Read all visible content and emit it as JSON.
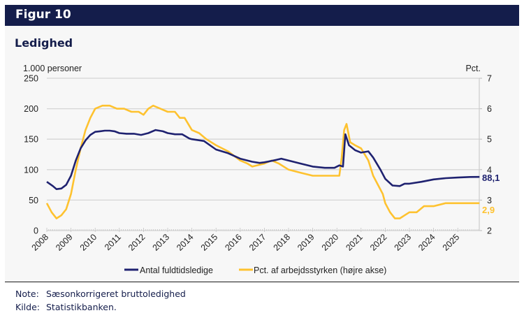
{
  "header": {
    "figure_label": "Figur 10"
  },
  "chart_data": {
    "type": "line",
    "title": "Ledighed",
    "ylabel_left": "1.000 personer",
    "ylabel_right": "Pct.",
    "ylim_left": [
      0,
      250
    ],
    "ylim_right": [
      2,
      7
    ],
    "yticks_left": [
      "0",
      "50",
      "100",
      "150",
      "200",
      "250"
    ],
    "yticks_right": [
      "2",
      "3",
      "4",
      "5",
      "6",
      "7"
    ],
    "grid": true,
    "x_tick_labels": [
      "2008",
      "2009",
      "2010",
      "2011",
      "2012",
      "2013",
      "2014",
      "2015",
      "2016",
      "2017",
      "2018",
      "2019",
      "2020",
      "2021",
      "2022",
      "2023",
      "2024",
      "2025"
    ],
    "x_range": [
      2008.0,
      2025.9
    ],
    "legend_position": "bottom",
    "series": [
      {
        "name": "Antal fuldtidsledige",
        "axis": "left",
        "color": "#1f2270",
        "end_label": "88,1",
        "x": [
          2008.0,
          2008.25,
          2008.4,
          2008.6,
          2008.8,
          2009.0,
          2009.2,
          2009.4,
          2009.6,
          2009.8,
          2010.0,
          2010.2,
          2010.4,
          2010.6,
          2010.8,
          2011.0,
          2011.3,
          2011.6,
          2011.9,
          2012.2,
          2012.5,
          2012.8,
          2013.0,
          2013.3,
          2013.6,
          2013.9,
          2014.0,
          2014.5,
          2015.0,
          2015.5,
          2016.0,
          2016.5,
          2016.8,
          2017.0,
          2017.5,
          2017.7,
          2018.0,
          2018.5,
          2019.0,
          2019.5,
          2019.9,
          2020.1,
          2020.25,
          2020.35,
          2020.5,
          2020.75,
          2021.0,
          2021.3,
          2021.5,
          2021.8,
          2022.0,
          2022.3,
          2022.6,
          2022.8,
          2023.0,
          2023.5,
          2024.0,
          2024.5,
          2025.0,
          2025.5,
          2025.9
        ],
        "values": [
          80,
          73,
          68,
          69,
          75,
          90,
          115,
          135,
          148,
          157,
          162,
          163,
          164,
          164,
          163,
          160,
          159,
          159,
          157,
          160,
          165,
          163,
          160,
          158,
          158,
          151,
          150,
          147,
          133,
          127,
          118,
          113,
          111,
          112,
          116,
          118,
          115,
          110,
          105,
          103,
          103,
          107,
          105,
          158,
          140,
          132,
          128,
          130,
          120,
          100,
          85,
          74,
          73,
          77,
          77,
          80,
          84,
          86,
          87,
          88,
          88.1
        ]
      },
      {
        "name": "Pct. af arbejdsstyrken (højre akse)",
        "axis": "right",
        "color": "#fec22f",
        "end_label": "2,9",
        "x": [
          2008.0,
          2008.2,
          2008.4,
          2008.6,
          2008.8,
          2009.0,
          2009.2,
          2009.4,
          2009.6,
          2009.8,
          2010.0,
          2010.3,
          2010.6,
          2010.9,
          2011.2,
          2011.5,
          2011.8,
          2012.0,
          2012.2,
          2012.4,
          2012.7,
          2013.0,
          2013.3,
          2013.5,
          2013.7,
          2014.0,
          2014.3,
          2014.6,
          2015.0,
          2015.5,
          2016.0,
          2016.3,
          2016.5,
          2017.0,
          2017.3,
          2017.6,
          2018.0,
          2018.5,
          2019.0,
          2019.5,
          2019.95,
          2020.1,
          2020.2,
          2020.3,
          2020.4,
          2020.55,
          2020.75,
          2021.0,
          2021.3,
          2021.5,
          2021.7,
          2021.9,
          2022.0,
          2022.2,
          2022.4,
          2022.6,
          2022.8,
          2023.0,
          2023.3,
          2023.6,
          2024.0,
          2024.5,
          2025.0,
          2025.5,
          2025.9
        ],
        "values": [
          2.9,
          2.6,
          2.4,
          2.5,
          2.7,
          3.2,
          4.0,
          4.7,
          5.3,
          5.7,
          6.0,
          6.1,
          6.1,
          6.0,
          6.0,
          5.9,
          5.9,
          5.8,
          6.0,
          6.1,
          6.0,
          5.9,
          5.9,
          5.7,
          5.7,
          5.3,
          5.2,
          5.0,
          4.8,
          4.6,
          4.3,
          4.2,
          4.1,
          4.2,
          4.3,
          4.2,
          4.0,
          3.9,
          3.8,
          3.8,
          3.8,
          3.8,
          4.4,
          5.3,
          5.5,
          4.9,
          4.8,
          4.7,
          4.3,
          3.8,
          3.5,
          3.2,
          2.9,
          2.6,
          2.4,
          2.4,
          2.5,
          2.6,
          2.6,
          2.8,
          2.8,
          2.9,
          2.9,
          2.9,
          2.9
        ]
      }
    ]
  },
  "notes": [
    {
      "label": "Note:",
      "text": "Sæsonkorrigeret bruttoledighed"
    },
    {
      "label": "Kilde:",
      "text": "Statistikbanken."
    }
  ]
}
